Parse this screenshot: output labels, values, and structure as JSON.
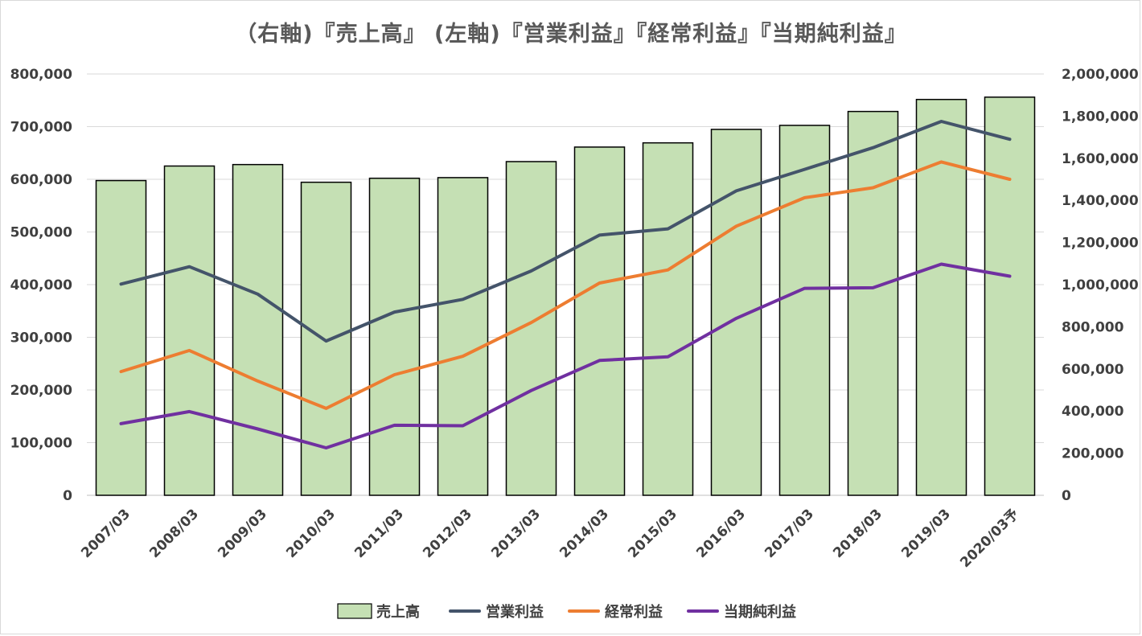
{
  "chart_data": {
    "type": "bar",
    "title": "（右軸)『売上高』 (左軸)『営業利益』『経常利益』『当期純利益』",
    "categories": [
      "2007/03",
      "2008/03",
      "2009/03",
      "2010/03",
      "2011/03",
      "2012/03",
      "2013/03",
      "2014/03",
      "2015/03",
      "2016/03",
      "2017/03",
      "2018/03",
      "2019/03",
      "2020/03予"
    ],
    "bar_series": {
      "name": "売上高",
      "axis": "right",
      "color": "#c5e0b4",
      "values": [
        1494000,
        1563000,
        1570000,
        1486000,
        1505000,
        1508000,
        1584000,
        1653000,
        1673000,
        1737000,
        1756000,
        1822000,
        1879000,
        1890000
      ]
    },
    "line_series": [
      {
        "name": "営業利益",
        "axis": "left",
        "color": "#44546a",
        "values": [
          401000,
          434000,
          382000,
          293000,
          348000,
          372000,
          426000,
          494000,
          506000,
          578000,
          619000,
          660000,
          710000,
          676000
        ]
      },
      {
        "name": "経常利益",
        "axis": "left",
        "color": "#ed7d31",
        "values": [
          235000,
          275000,
          217000,
          165000,
          229000,
          264000,
          328000,
          403000,
          428000,
          511000,
          565000,
          584000,
          633000,
          600000
        ]
      },
      {
        "name": "当期純利益",
        "axis": "left",
        "color": "#7030a0",
        "values": [
          136000,
          159000,
          126000,
          90000,
          133000,
          132000,
          199000,
          256000,
          263000,
          336000,
          393000,
          394000,
          439000,
          416000
        ]
      }
    ],
    "left_axis": {
      "min": 0,
      "max": 800000,
      "ticks": [
        "0",
        "100,000",
        "200,000",
        "300,000",
        "400,000",
        "500,000",
        "600,000",
        "700,000",
        "800,000"
      ]
    },
    "right_axis": {
      "min": 0,
      "max": 2000000,
      "ticks": [
        "0",
        "200,000",
        "400,000",
        "600,000",
        "800,000",
        "1,000,000",
        "1,200,000",
        "1,400,000",
        "1,600,000",
        "1,800,000",
        "2,000,000"
      ]
    },
    "grid": true,
    "legend_position": "bottom",
    "legend": [
      "売上高",
      "営業利益",
      "経常利益",
      "当期純利益"
    ]
  }
}
